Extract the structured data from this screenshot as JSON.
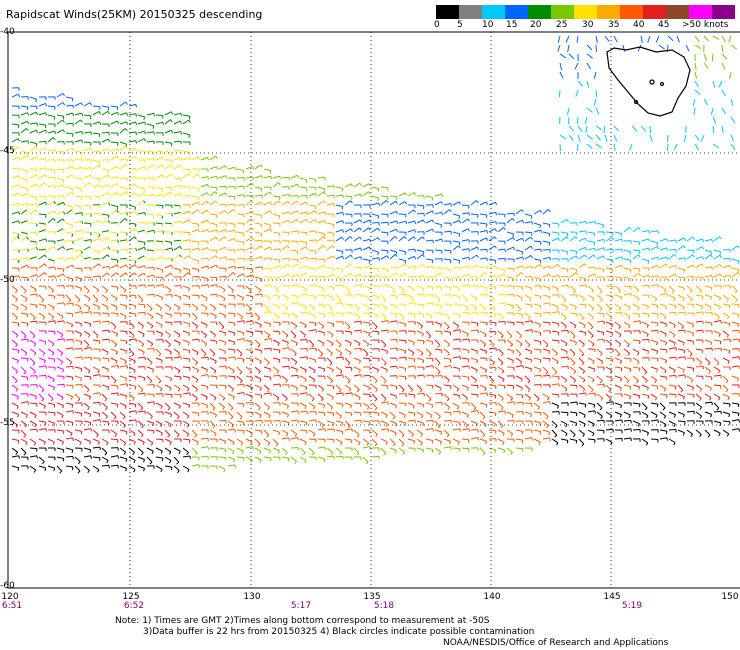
{
  "title": "Rapidscat Winds(25KM) 20150325 descending",
  "legend": {
    "labels": [
      "0",
      "5",
      "10",
      "15",
      "20",
      "25",
      "30",
      "35",
      "40",
      "45",
      ">50 knots"
    ],
    "colors": [
      "#000000",
      "#7f7f7f",
      "#00c8ff",
      "#0064ff",
      "#008c00",
      "#78c800",
      "#ffe100",
      "#ffaa00",
      "#ff5a00",
      "#e61e1e",
      "#8c4628",
      "#ff00ff",
      "#8c008c"
    ]
  },
  "axes": {
    "lon_labels": [
      "120",
      "125",
      "130",
      "135",
      "140",
      "145",
      "150"
    ],
    "lat_labels": [
      "-40",
      "-45",
      "-50",
      "-55",
      "-60"
    ],
    "time_labels": [
      "6:51",
      "6:52",
      "5:17",
      "5:18",
      "5:19"
    ]
  },
  "notes": {
    "line1": "Note: 1) Times are GMT 2)Times along bottom correspond to measurement at -50S",
    "line2": "3)Data buffer is 22 hrs from 20150325 4) Black circles indicate possible contamination",
    "line3": "NOAA/NESDIS/Office of Research and Applications"
  }
}
